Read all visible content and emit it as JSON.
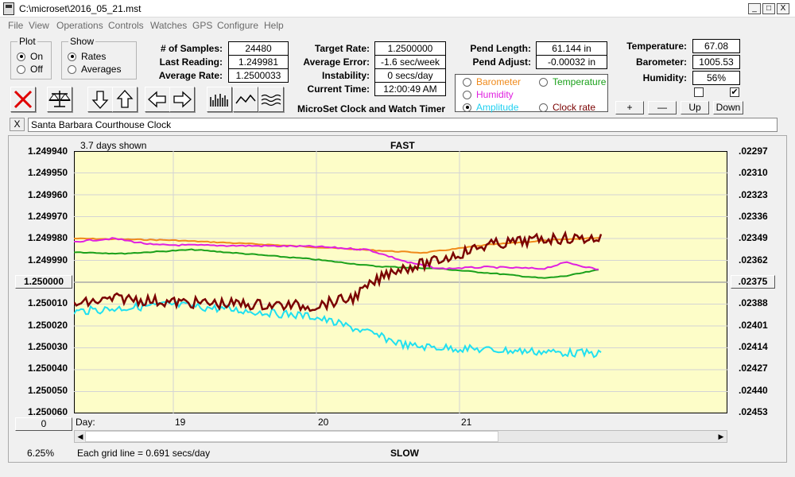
{
  "window": {
    "title": "C:\\microset\\2016_05_21.mst",
    "min": "_",
    "max": "□",
    "close": "X"
  },
  "menu": [
    "File",
    "View",
    "Operations",
    "Controls",
    "Watches",
    "GPS",
    "Configure",
    "Help"
  ],
  "plot": {
    "legend": "Plot",
    "on": "On",
    "off": "Off"
  },
  "show": {
    "legend": "Show",
    "rates": "Rates",
    "averages": "Averages"
  },
  "stats": {
    "samples_label": "# of Samples:",
    "samples": "24480",
    "last_label": "Last Reading:",
    "last": "1.249981",
    "avg_label": "Average Rate:",
    "avg": "1.2500033",
    "target_label": "Target Rate:",
    "target": "1.2500000",
    "avgerr_label": "Average Error:",
    "avgerr": "-1.6 sec/week",
    "instab_label": "Instability:",
    "instab": "0 secs/day",
    "time_label": "Current Time:",
    "time": "12:00:49 AM",
    "pendlen_label": "Pend Length:",
    "pendlen": "61.144 in",
    "pendadj_label": "Pend Adjust:",
    "pendadj": "-0.00032 in",
    "temp_label": "Temperature:",
    "temp": "67.08",
    "baro_label": "Barometer:",
    "baro": "1005.53",
    "hum_label": "Humidity:",
    "hum": "56%"
  },
  "subtitle": "MicroSet Clock and Watch Timer",
  "legend": {
    "barometer": "Barometer",
    "temperature": "Temperature",
    "humidity": "Humidity",
    "amplitude": "Amplitude",
    "clockrate": "Clock rate",
    "colors": {
      "barometer": "#f08a1a",
      "temperature": "#1aa01a",
      "humidity": "#e020e0",
      "amplitude": "#20e0f0",
      "clockrate": "#7a0000"
    }
  },
  "adjust_buttons": {
    "plus": "+",
    "minus": "—",
    "up": "Up",
    "down": "Down"
  },
  "clock_close": "X",
  "clock_name": "Santa Barbara Courthouse Clock",
  "graph": {
    "days_shown": "3.7 days shown",
    "fast": "FAST",
    "slow": "SLOW",
    "day_label": "Day:",
    "day_ticks": [
      "19",
      "20",
      "21"
    ],
    "left_axis": [
      "1.249940",
      "1.249950",
      "1.249960",
      "1.249970",
      "1.249980",
      "1.249990",
      "1.250000",
      "1.250010",
      "1.250020",
      "1.250030",
      "1.250040",
      "1.250050",
      "1.250060"
    ],
    "right_axis": [
      ".02297",
      ".02310",
      ".02323",
      ".02336",
      ".02349",
      ".02362",
      ".02375",
      ".02388",
      ".02401",
      ".02414",
      ".02427",
      ".02440",
      ".02453"
    ],
    "zero_button": "0",
    "zoom": "6.25%",
    "grid_note": "Each grid line = 0.691 secs/day"
  }
}
